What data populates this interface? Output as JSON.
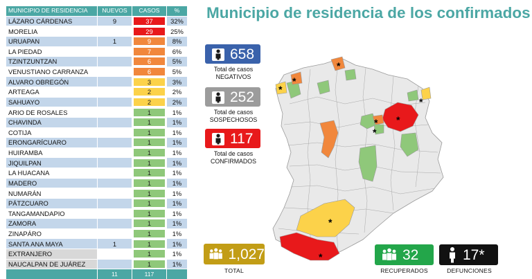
{
  "title": "Municipio de residencia de los confirmados",
  "table": {
    "headers": {
      "name": "MUNICIPIO DE RESIDENCIA",
      "new": "NUEVOS",
      "cases": "CASOS",
      "pct": "%"
    },
    "rows": [
      {
        "name": "LÁZARO CÁRDENAS",
        "new": "9",
        "cases": "37",
        "pct": "32%",
        "color": "#e8191b",
        "text": "#ffffff"
      },
      {
        "name": "MORELIA",
        "new": "",
        "cases": "29",
        "pct": "25%",
        "color": "#e8191b",
        "text": "#ffffff"
      },
      {
        "name": "URUAPAN",
        "new": "1",
        "cases": "9",
        "pct": "8%",
        "color": "#f1873c",
        "text": "#ffffff"
      },
      {
        "name": "LA PIEDAD",
        "new": "",
        "cases": "7",
        "pct": "6%",
        "color": "#f1873c",
        "text": "#ffffff"
      },
      {
        "name": "TZINTZUNTZAN",
        "new": "",
        "cases": "6",
        "pct": "5%",
        "color": "#f1873c",
        "text": "#ffffff"
      },
      {
        "name": "VENUSTIANO CARRANZA",
        "new": "",
        "cases": "6",
        "pct": "5%",
        "color": "#f1873c",
        "text": "#ffffff"
      },
      {
        "name": "ALVARO OBREGÓN",
        "new": "",
        "cases": "3",
        "pct": "3%",
        "color": "#fcd24a",
        "text": "#222222"
      },
      {
        "name": "ARTEAGA",
        "new": "",
        "cases": "2",
        "pct": "2%",
        "color": "#fcd24a",
        "text": "#222222"
      },
      {
        "name": "SAHUAYO",
        "new": "",
        "cases": "2",
        "pct": "2%",
        "color": "#fcd24a",
        "text": "#222222"
      },
      {
        "name": "ARIO DE ROSALES",
        "new": "",
        "cases": "1",
        "pct": "1%",
        "color": "#8fc87a",
        "text": "#222222"
      },
      {
        "name": "CHAVINDA",
        "new": "",
        "cases": "1",
        "pct": "1%",
        "color": "#8fc87a",
        "text": "#222222"
      },
      {
        "name": "COTIJA",
        "new": "",
        "cases": "1",
        "pct": "1%",
        "color": "#8fc87a",
        "text": "#222222"
      },
      {
        "name": "ERONGARÍCUARO",
        "new": "",
        "cases": "1",
        "pct": "1%",
        "color": "#8fc87a",
        "text": "#222222"
      },
      {
        "name": "HUIRAMBA",
        "new": "",
        "cases": "1",
        "pct": "1%",
        "color": "#8fc87a",
        "text": "#222222"
      },
      {
        "name": "JIQUILPAN",
        "new": "",
        "cases": "1",
        "pct": "1%",
        "color": "#8fc87a",
        "text": "#222222"
      },
      {
        "name": "LA HUACANA",
        "new": "",
        "cases": "1",
        "pct": "1%",
        "color": "#8fc87a",
        "text": "#222222"
      },
      {
        "name": "MADERO",
        "new": "",
        "cases": "1",
        "pct": "1%",
        "color": "#8fc87a",
        "text": "#222222"
      },
      {
        "name": "NUMARÁN",
        "new": "",
        "cases": "1",
        "pct": "1%",
        "color": "#8fc87a",
        "text": "#222222"
      },
      {
        "name": "PÁTZCUARO",
        "new": "",
        "cases": "1",
        "pct": "1%",
        "color": "#8fc87a",
        "text": "#222222"
      },
      {
        "name": "TANGAMANDAPIO",
        "new": "",
        "cases": "1",
        "pct": "1%",
        "color": "#8fc87a",
        "text": "#222222"
      },
      {
        "name": "ZAMORA",
        "new": "",
        "cases": "1",
        "pct": "1%",
        "color": "#8fc87a",
        "text": "#222222"
      },
      {
        "name": "ZINAPÁRO",
        "new": "",
        "cases": "1",
        "pct": "1%",
        "color": "#8fc87a",
        "text": "#222222"
      },
      {
        "name": "SANTA ANA MAYA",
        "new": "1",
        "cases": "1",
        "pct": "1%",
        "color": "#8fc87a",
        "text": "#222222"
      },
      {
        "name": "EXTRANJERO",
        "new": "",
        "cases": "1",
        "pct": "1%",
        "color": "#8fc87a",
        "text": "#222222",
        "grey": true
      },
      {
        "name": "NAUCALPAN DE JUÁREZ",
        "new": "",
        "cases": "1",
        "pct": "1%",
        "color": "#8fc87a",
        "text": "#222222",
        "grey": true
      }
    ],
    "totals": {
      "new": "11",
      "cases": "117"
    }
  },
  "stats": {
    "negatives": {
      "value": "658",
      "label1": "Total de casos",
      "label2": "NEGATIVOS",
      "color": "#3a62ab"
    },
    "suspects": {
      "value": "252",
      "label1": "Total de casos",
      "label2": "SOSPECHOSOS",
      "color": "#9c9c9c"
    },
    "confirmed": {
      "value": "117",
      "label1": "Total de casos",
      "label2": "CONFIRMADOS",
      "color": "#e8191b"
    },
    "total": {
      "value": "1,027",
      "label": "TOTAL",
      "color": "#c29d16"
    },
    "recovered": {
      "value": "32",
      "label": "RECUPERADOS",
      "color": "#23a64a"
    },
    "deaths": {
      "value": "17*",
      "label": "DEFUNCIONES",
      "color": "#111111"
    }
  },
  "map": {
    "colors": {
      "base": "#e9e9e9",
      "border": "#9a9a9a",
      "red": "#e8191b",
      "orange": "#f1873c",
      "yellow": "#fcd24a",
      "green": "#8fc87a"
    },
    "marker": "*"
  }
}
